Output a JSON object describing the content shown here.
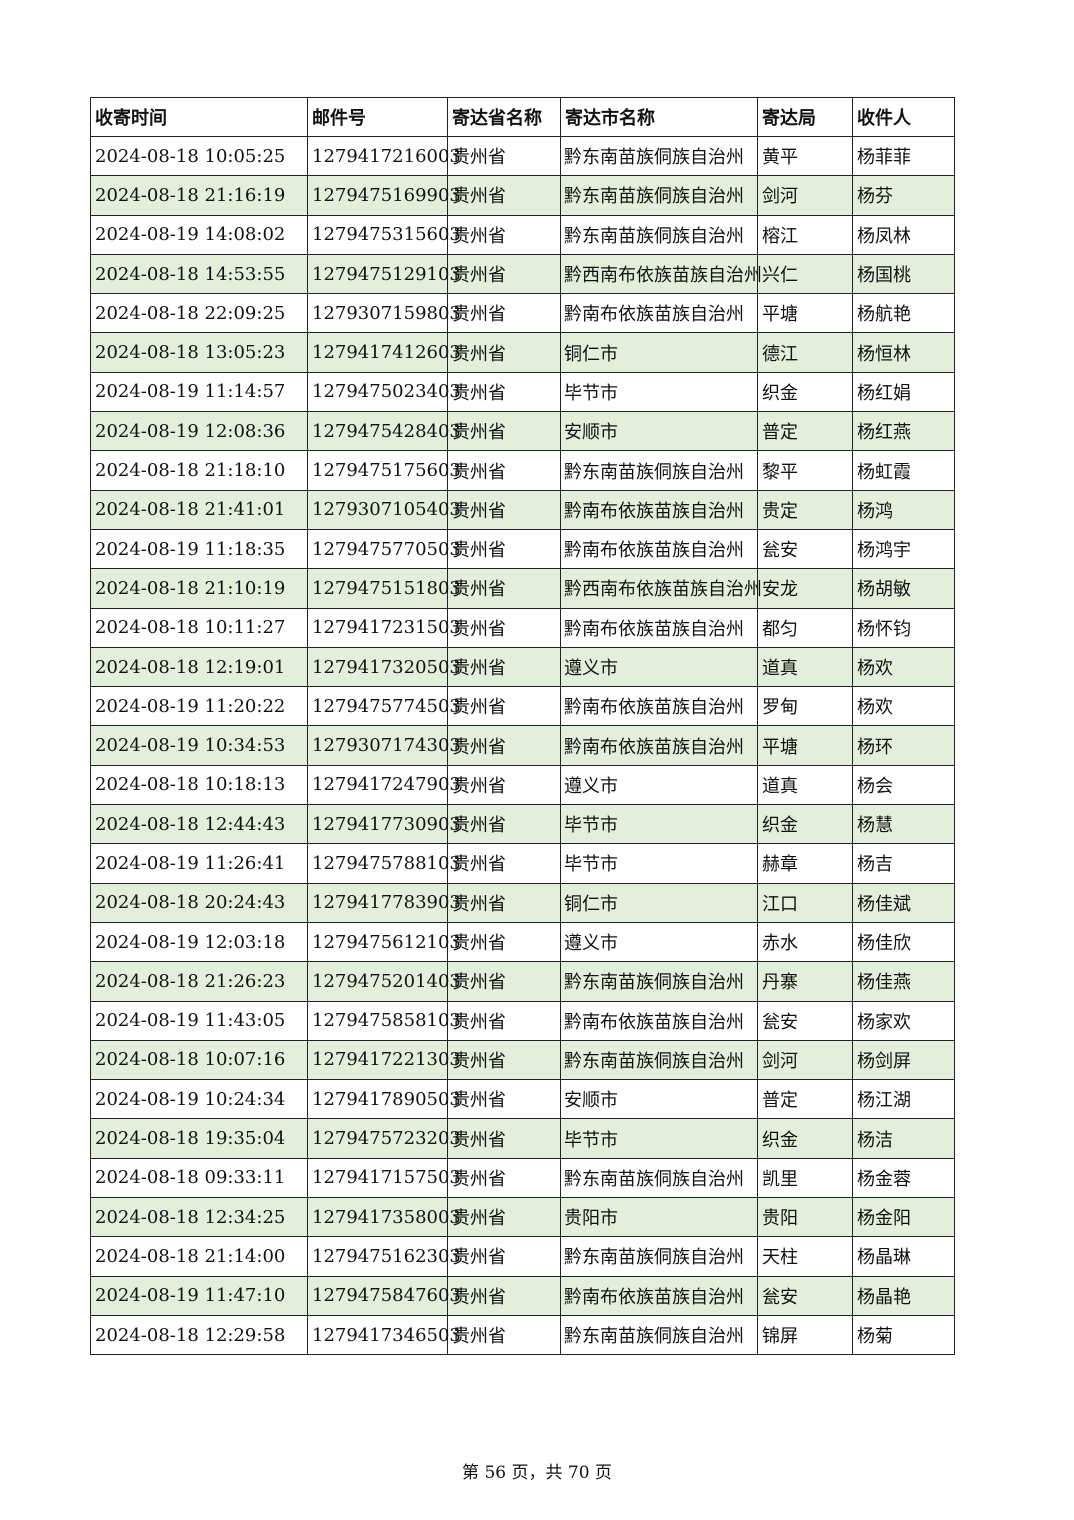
{
  "table": {
    "headers": [
      "收寄时间",
      "邮件号",
      "寄达省名称",
      "寄达市名称",
      "寄达局",
      "收件人"
    ],
    "rows": [
      [
        "2024-08-18 10:05:25",
        "1279417216003",
        "贵州省",
        "黔东南苗族侗族自治州",
        "黄平",
        "杨菲菲"
      ],
      [
        "2024-08-18 21:16:19",
        "1279475169903",
        "贵州省",
        "黔东南苗族侗族自治州",
        "剑河",
        "杨芬"
      ],
      [
        "2024-08-19 14:08:02",
        "1279475315603",
        "贵州省",
        "黔东南苗族侗族自治州",
        "榕江",
        "杨凤林"
      ],
      [
        "2024-08-18 14:53:55",
        "1279475129103",
        "贵州省",
        "黔西南布依族苗族自治州",
        "兴仁",
        "杨国桃"
      ],
      [
        "2024-08-18 22:09:25",
        "1279307159803",
        "贵州省",
        "黔南布依族苗族自治州",
        "平塘",
        "杨航艳"
      ],
      [
        "2024-08-18 13:05:23",
        "1279417412603",
        "贵州省",
        "铜仁市",
        "德江",
        "杨恒林"
      ],
      [
        "2024-08-19 11:14:57",
        "1279475023403",
        "贵州省",
        "毕节市",
        "织金",
        "杨红娟"
      ],
      [
        "2024-08-19 12:08:36",
        "1279475428403",
        "贵州省",
        "安顺市",
        "普定",
        "杨红燕"
      ],
      [
        "2024-08-18 21:18:10",
        "1279475175603",
        "贵州省",
        "黔东南苗族侗族自治州",
        "黎平",
        "杨虹霞"
      ],
      [
        "2024-08-18 21:41:01",
        "1279307105403",
        "贵州省",
        "黔南布依族苗族自治州",
        "贵定",
        "杨鸿"
      ],
      [
        "2024-08-19 11:18:35",
        "1279475770503",
        "贵州省",
        "黔南布依族苗族自治州",
        "瓮安",
        "杨鸿宇"
      ],
      [
        "2024-08-18 21:10:19",
        "1279475151803",
        "贵州省",
        "黔西南布依族苗族自治州",
        "安龙",
        "杨胡敏"
      ],
      [
        "2024-08-18 10:11:27",
        "1279417231503",
        "贵州省",
        "黔南布依族苗族自治州",
        "都匀",
        "杨怀钧"
      ],
      [
        "2024-08-18 12:19:01",
        "1279417320503",
        "贵州省",
        "遵义市",
        "道真",
        "杨欢"
      ],
      [
        "2024-08-19 11:20:22",
        "1279475774503",
        "贵州省",
        "黔南布依族苗族自治州",
        "罗甸",
        "杨欢"
      ],
      [
        "2024-08-19 10:34:53",
        "1279307174303",
        "贵州省",
        "黔南布依族苗族自治州",
        "平塘",
        "杨环"
      ],
      [
        "2024-08-18 10:18:13",
        "1279417247903",
        "贵州省",
        "遵义市",
        "道真",
        "杨会"
      ],
      [
        "2024-08-18 12:44:43",
        "1279417730903",
        "贵州省",
        "毕节市",
        "织金",
        "杨慧"
      ],
      [
        "2024-08-19 11:26:41",
        "1279475788103",
        "贵州省",
        "毕节市",
        "赫章",
        "杨吉"
      ],
      [
        "2024-08-18 20:24:43",
        "1279417783903",
        "贵州省",
        "铜仁市",
        "江口",
        "杨佳斌"
      ],
      [
        "2024-08-19 12:03:18",
        "1279475612103",
        "贵州省",
        "遵义市",
        "赤水",
        "杨佳欣"
      ],
      [
        "2024-08-18 21:26:23",
        "1279475201403",
        "贵州省",
        "黔东南苗族侗族自治州",
        "丹寨",
        "杨佳燕"
      ],
      [
        "2024-08-19 11:43:05",
        "1279475858103",
        "贵州省",
        "黔南布依族苗族自治州",
        "瓮安",
        "杨家欢"
      ],
      [
        "2024-08-18 10:07:16",
        "1279417221303",
        "贵州省",
        "黔东南苗族侗族自治州",
        "剑河",
        "杨剑屏"
      ],
      [
        "2024-08-19 10:24:34",
        "1279417890503",
        "贵州省",
        "安顺市",
        "普定",
        "杨江湖"
      ],
      [
        "2024-08-18 19:35:04",
        "1279475723203",
        "贵州省",
        "毕节市",
        "织金",
        "杨洁"
      ],
      [
        "2024-08-18 09:33:11",
        "1279417157503",
        "贵州省",
        "黔东南苗族侗族自治州",
        "凯里",
        "杨金蓉"
      ],
      [
        "2024-08-18 12:34:25",
        "1279417358003",
        "贵州省",
        "贵阳市",
        "贵阳",
        "杨金阳"
      ],
      [
        "2024-08-18 21:14:00",
        "1279475162303",
        "贵州省",
        "黔东南苗族侗族自治州",
        "天柱",
        "杨晶琳"
      ],
      [
        "2024-08-19 11:47:10",
        "1279475847603",
        "贵州省",
        "黔南布依族苗族自治州",
        "瓮安",
        "杨晶艳"
      ],
      [
        "2024-08-18 12:29:58",
        "1279417346503",
        "贵州省",
        "黔东南苗族侗族自治州",
        "锦屏",
        "杨菊"
      ]
    ]
  },
  "footer": {
    "page_text": "第 56 页，共 70 页"
  },
  "colors": {
    "alt_row": "#e2efda",
    "border": "#222222"
  }
}
